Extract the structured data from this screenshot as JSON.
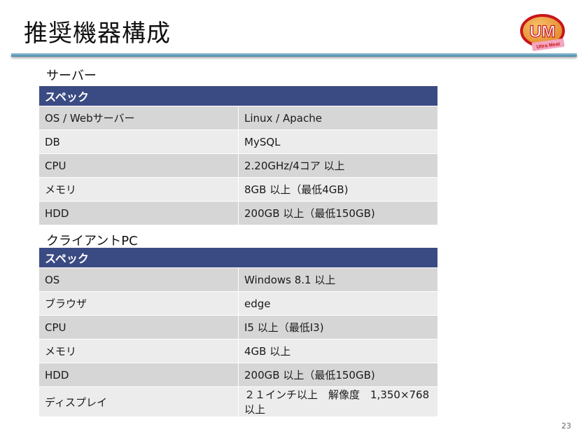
{
  "slide": {
    "title": "推奨機器構成",
    "page_number": "23",
    "logo": {
      "text": "UM",
      "subtext": "Ultra Meat",
      "color": "#c8161d"
    }
  },
  "server": {
    "label": "サーバー",
    "header": "スペック",
    "rows": [
      {
        "item": "OS / Webサーバー",
        "value": "Linux / Apache"
      },
      {
        "item": "DB",
        "value": "MySQL"
      },
      {
        "item": "CPU",
        "value": "2.20GHz/4コア 以上"
      },
      {
        "item": "メモリ",
        "value": "8GB 以上（最低4GB)"
      },
      {
        "item": "HDD",
        "value": "200GB 以上（最低150GB)"
      }
    ]
  },
  "client": {
    "label": "クライアントPC",
    "header": "スペック",
    "rows": [
      {
        "item": "OS",
        "value": "Windows 8.1 以上"
      },
      {
        "item": "ブラウザ",
        "value": "edge"
      },
      {
        "item": "CPU",
        "value": "I5 以上（最低I3)"
      },
      {
        "item": "メモリ",
        "value": "4GB 以上"
      },
      {
        "item": "HDD",
        "value": "200GB 以上（最低150GB)"
      },
      {
        "item": "ディスプレイ",
        "value": "２１インチ以上　解像度　1,350×768以上"
      }
    ]
  },
  "colors": {
    "header_bg": "#3a4a82",
    "row_dark": "#d6d6d6",
    "row_light": "#ececec",
    "rule": "#3e86a8"
  }
}
